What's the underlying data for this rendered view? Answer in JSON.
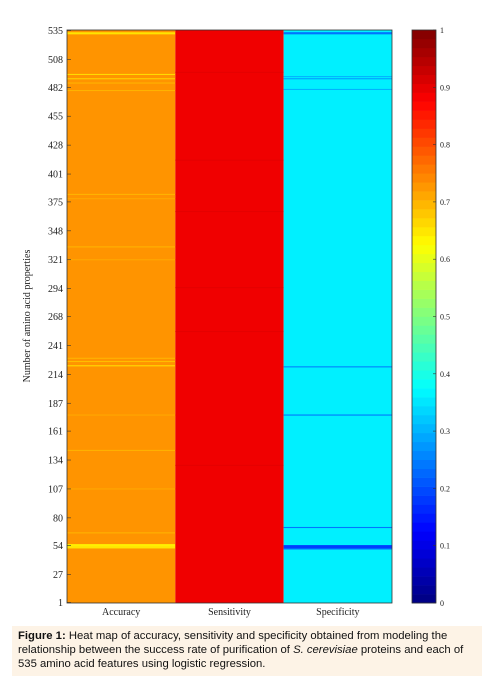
{
  "chart_data": {
    "type": "heatmap",
    "ylabel": "Number of amino acid properties",
    "categories": [
      "Accuracy",
      "Sensitivity",
      "Specificity"
    ],
    "y_ticks": [
      1,
      27,
      54,
      80,
      107,
      134,
      161,
      187,
      214,
      241,
      268,
      294,
      321,
      348,
      375,
      401,
      428,
      455,
      482,
      508,
      535
    ],
    "ylim": [
      1,
      535
    ],
    "colorbar": {
      "ticks": [
        0,
        0.1,
        0.2,
        0.3,
        0.4,
        0.5,
        0.6,
        0.7,
        0.8,
        0.9,
        1
      ],
      "tick_labels": [
        "0",
        "0.1",
        "0.2",
        "0.3",
        "0.4",
        "0.5",
        "0.6",
        "0.7",
        "0.8",
        "0.9",
        "1"
      ],
      "range": [
        0,
        1
      ],
      "colormap": "jet"
    },
    "columns": [
      {
        "name": "Accuracy",
        "base": 0.73,
        "stripes": [
          [
            533,
            0.66
          ],
          [
            532,
            0.64
          ],
          [
            494,
            0.66
          ],
          [
            490,
            0.67
          ],
          [
            486,
            0.7
          ],
          [
            479,
            0.7
          ],
          [
            382,
            0.7
          ],
          [
            378,
            0.71
          ],
          [
            333,
            0.7
          ],
          [
            321,
            0.71
          ],
          [
            229,
            0.7
          ],
          [
            226,
            0.69
          ],
          [
            222,
            0.66
          ],
          [
            176,
            0.71
          ],
          [
            143,
            0.7
          ],
          [
            107,
            0.71
          ],
          [
            66,
            0.7
          ],
          [
            55,
            0.64
          ],
          [
            54,
            0.63
          ],
          [
            53,
            0.64
          ],
          [
            52,
            0.64
          ]
        ]
      },
      {
        "name": "Sensitivity",
        "base": 0.89,
        "stripes": [
          [
            496,
            0.9
          ],
          [
            414,
            0.9
          ],
          [
            366,
            0.9
          ],
          [
            295,
            0.9
          ],
          [
            254,
            0.9
          ],
          [
            129,
            0.9
          ]
        ]
      },
      {
        "name": "Specificity",
        "base": 0.36,
        "stripes": [
          [
            533,
            0.24
          ],
          [
            532,
            0.22
          ],
          [
            492,
            0.3
          ],
          [
            490,
            0.28
          ],
          [
            480,
            0.3
          ],
          [
            221,
            0.25
          ],
          [
            176,
            0.24
          ],
          [
            71,
            0.24
          ],
          [
            54,
            0.17
          ],
          [
            53,
            0.16
          ],
          [
            52,
            0.17
          ],
          [
            51,
            0.23
          ]
        ]
      }
    ]
  },
  "caption": {
    "prefix": "Figure 1:",
    "text_a": " Heat map of accuracy, sensitivity and specificity obtained from modeling the relationship between the success rate of purification of ",
    "species": "S. cerevisiae",
    "text_b": " proteins and each of 535 amino acid features using logistic regression."
  }
}
